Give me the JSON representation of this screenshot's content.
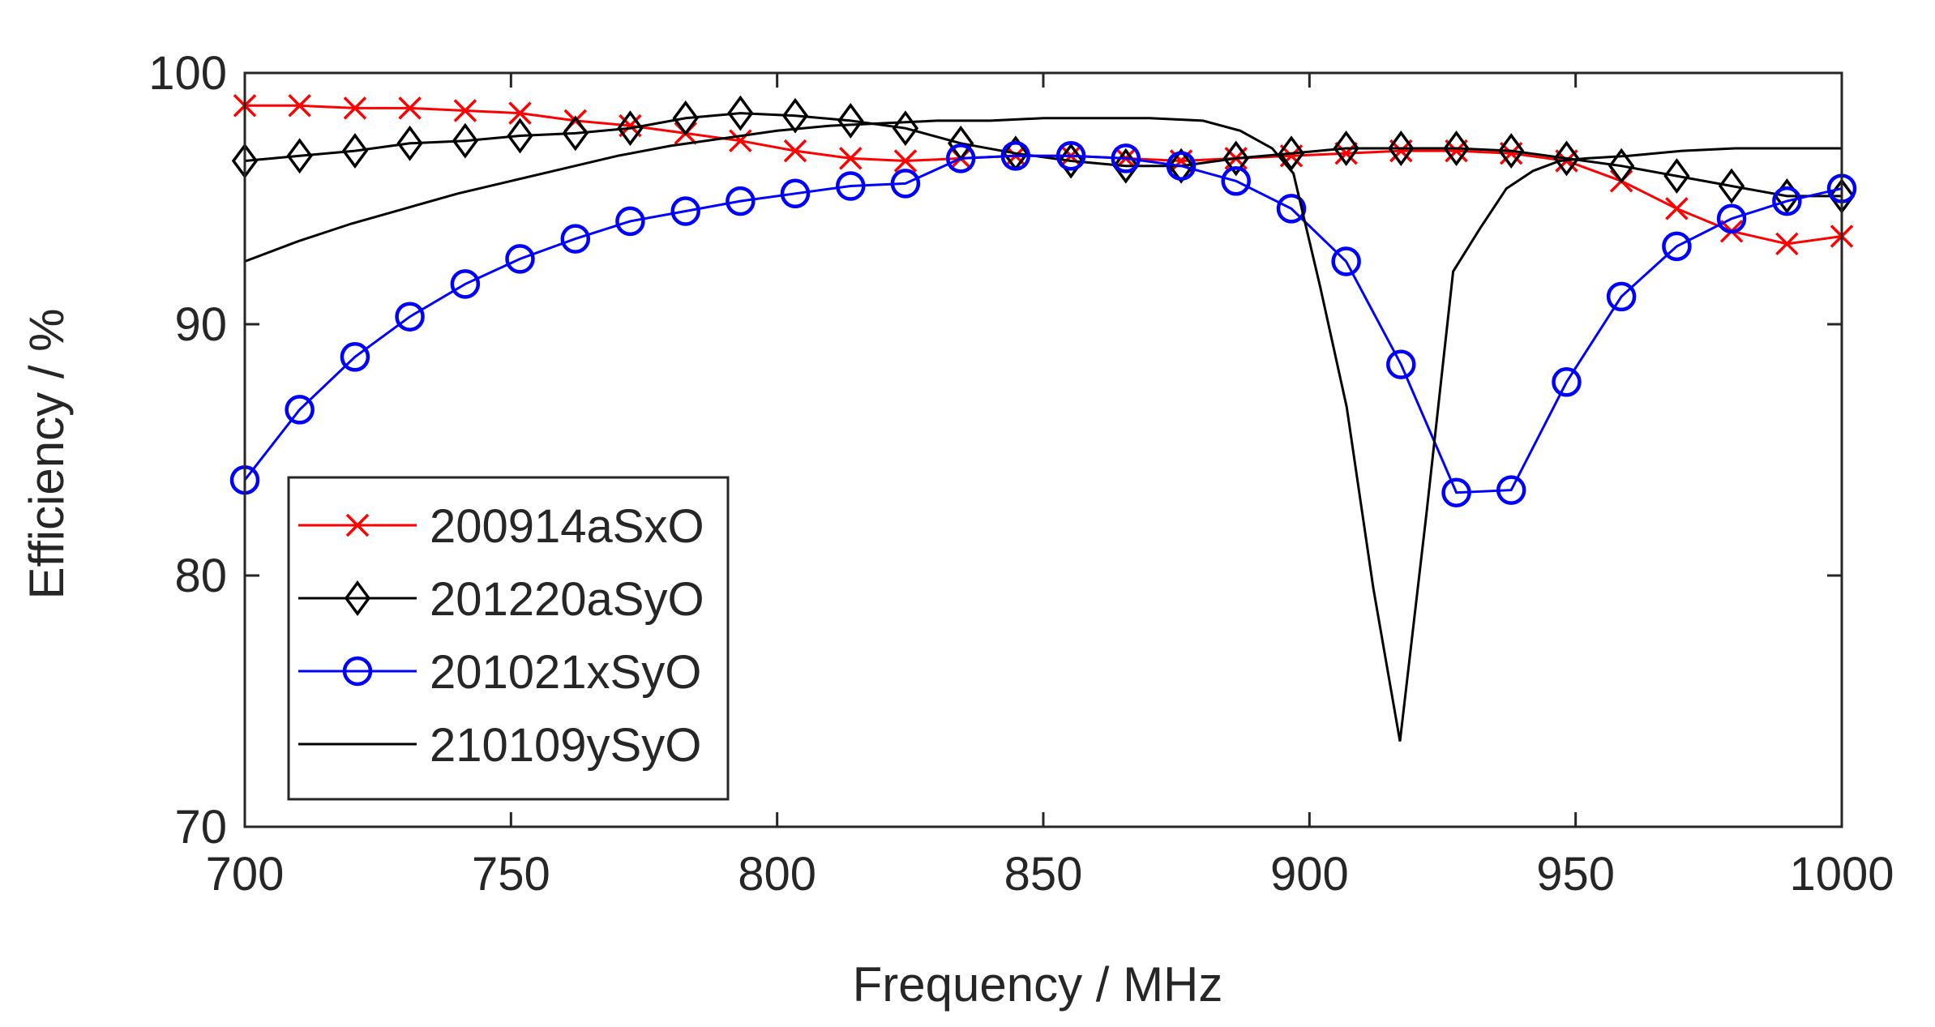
{
  "chart_data": {
    "type": "line",
    "title": "",
    "xlabel": "Frequency / MHz",
    "ylabel": "Efficiency / %",
    "xlim": [
      700,
      1000
    ],
    "ylim": [
      70,
      100
    ],
    "xticks": [
      700,
      750,
      800,
      850,
      900,
      950,
      1000
    ],
    "yticks": [
      70,
      80,
      90,
      100
    ],
    "grid": false,
    "legend_position": "bottom-left",
    "series": [
      {
        "name": "200914aSxO",
        "color": "#ff0000",
        "marker": "x",
        "x": [
          700,
          710.3,
          720.7,
          731,
          741.4,
          751.7,
          762.1,
          772.4,
          782.8,
          793.1,
          803.4,
          813.8,
          824.1,
          834.5,
          844.8,
          855.2,
          865.5,
          875.9,
          886.2,
          896.6,
          906.9,
          917.2,
          927.6,
          937.9,
          948.3,
          958.6,
          969,
          979.3,
          989.7,
          1000
        ],
        "y": [
          98.7,
          98.7,
          98.6,
          98.6,
          98.5,
          98.4,
          98.1,
          97.9,
          97.6,
          97.3,
          96.9,
          96.6,
          96.5,
          96.6,
          96.7,
          96.7,
          96.6,
          96.5,
          96.6,
          96.7,
          96.8,
          96.9,
          96.9,
          96.8,
          96.5,
          95.7,
          94.6,
          93.7,
          93.2,
          93.5
        ]
      },
      {
        "name": "201220aSyO",
        "color": "#000000",
        "marker": "diamond",
        "x": [
          700,
          710.3,
          720.7,
          731,
          741.4,
          751.7,
          762.1,
          772.4,
          782.8,
          793.1,
          803.4,
          813.8,
          824.1,
          834.5,
          844.8,
          855.2,
          865.5,
          875.9,
          886.2,
          896.6,
          906.9,
          917.2,
          927.6,
          937.9,
          948.3,
          958.6,
          969,
          979.3,
          989.7,
          1000
        ],
        "y": [
          96.5,
          96.7,
          96.9,
          97.2,
          97.3,
          97.5,
          97.6,
          97.8,
          98.2,
          98.4,
          98.3,
          98.1,
          97.8,
          97.2,
          96.8,
          96.5,
          96.3,
          96.3,
          96.6,
          96.8,
          97,
          97,
          97,
          96.9,
          96.6,
          96.3,
          95.9,
          95.5,
          95.1,
          95.1
        ]
      },
      {
        "name": "201021xSyO",
        "color": "#0000ff",
        "marker": "circle",
        "x": [
          700,
          710.3,
          720.7,
          731,
          741.4,
          751.7,
          762.1,
          772.4,
          782.8,
          793.1,
          803.4,
          813.8,
          824.1,
          834.5,
          844.8,
          855.2,
          865.5,
          875.9,
          886.2,
          896.6,
          906.9,
          917.2,
          927.6,
          937.9,
          948.3,
          958.6,
          969,
          979.3,
          989.7,
          1000
        ],
        "y": [
          83.8,
          86.6,
          88.7,
          90.3,
          91.6,
          92.6,
          93.4,
          94.1,
          94.5,
          94.9,
          95.2,
          95.5,
          95.6,
          96.6,
          96.7,
          96.7,
          96.6,
          96.3,
          95.7,
          94.6,
          92.5,
          88.4,
          83.3,
          83.4,
          87.7,
          91.1,
          93.1,
          94.2,
          94.9,
          95.4
        ]
      },
      {
        "name": "210109ySyO",
        "color": "#000000",
        "marker": "none",
        "x": [
          700,
          710,
          720,
          730,
          740,
          750,
          760,
          770,
          780,
          790,
          800,
          810,
          820,
          830,
          840,
          850,
          860,
          870,
          880,
          887,
          893,
          897,
          902,
          907,
          912,
          917,
          922,
          927,
          932,
          937,
          942,
          947,
          952,
          960,
          970,
          980,
          990,
          1000
        ],
        "y": [
          92.5,
          93.3,
          94,
          94.6,
          95.2,
          95.7,
          96.2,
          96.7,
          97.1,
          97.4,
          97.7,
          97.9,
          98,
          98.1,
          98.1,
          98.2,
          98.2,
          98.2,
          98.1,
          97.7,
          97,
          96,
          91.5,
          86.7,
          79.5,
          73.4,
          82.5,
          92.1,
          93.8,
          95.4,
          96.1,
          96.5,
          96.6,
          96.7,
          96.9,
          97,
          97,
          97
        ]
      }
    ],
    "legend": [
      "200914aSxO",
      "201220aSyO",
      "201021xSyO",
      "210109ySyO"
    ]
  }
}
